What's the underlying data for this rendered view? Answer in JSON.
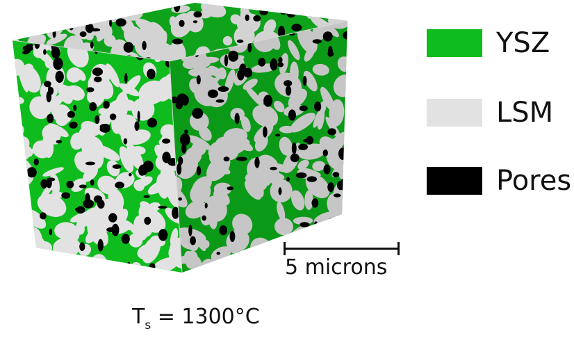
{
  "legend": {
    "items": [
      {
        "label": "YSZ",
        "color": "#0fbc1e"
      },
      {
        "label": "LSM",
        "color": "#e2e2e2"
      },
      {
        "label": "Pores",
        "color": "#000000"
      }
    ]
  },
  "scale_bar": {
    "label": "5 microns"
  },
  "sintering_temperature": {
    "symbol": "T",
    "subscript": "s",
    "value": "= 1300°C"
  },
  "colors": {
    "ysz_front": "#0fbc1e",
    "ysz_side": "#0b9a17",
    "ysz_top": "#0ea31b",
    "lsm_front": "#e2e2e2",
    "lsm_side": "#c6c6c6",
    "lsm_top": "#d3d3d3",
    "pore": "#000000"
  }
}
